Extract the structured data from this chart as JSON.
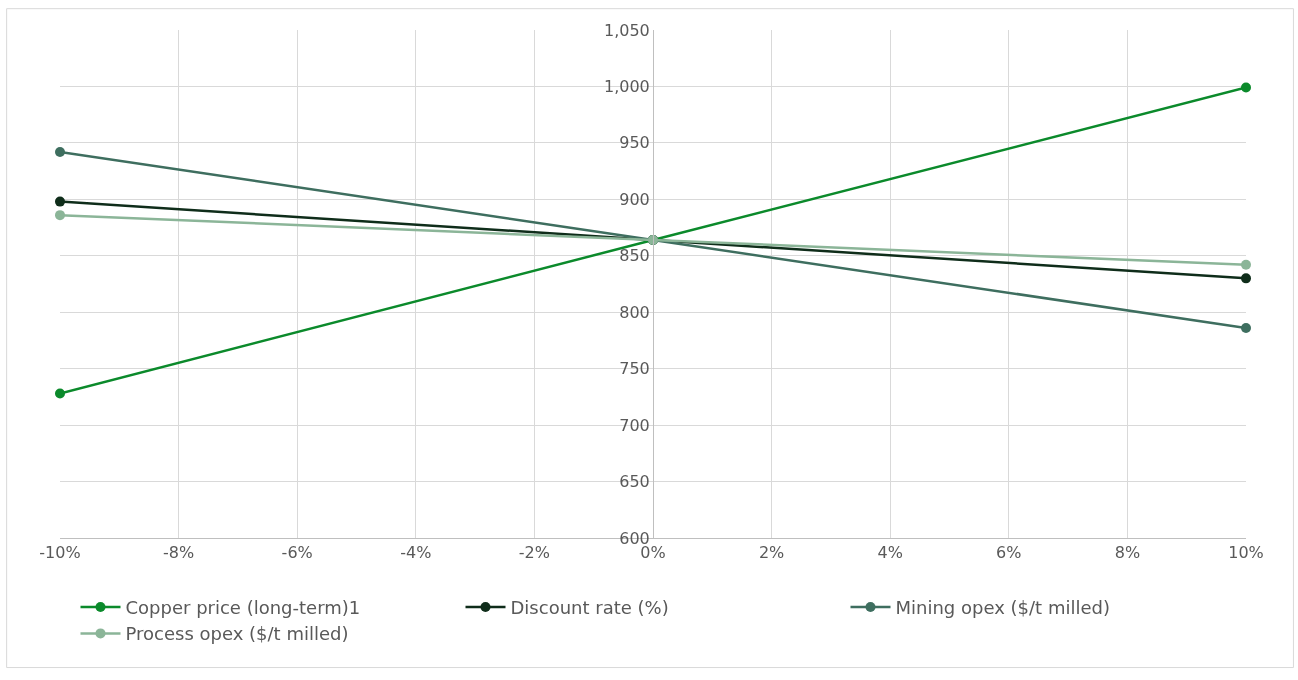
{
  "chart_data": {
    "type": "line",
    "x": [
      -10,
      0,
      10
    ],
    "series": [
      {
        "name": "Copper price (long-term)1",
        "color": "#0b8a2b",
        "values": [
          728,
          864,
          999
        ]
      },
      {
        "name": "Discount rate (%)",
        "color": "#0f2d1a",
        "values": [
          898,
          864,
          830
        ]
      },
      {
        "name": "Mining opex ($/t milled)",
        "color": "#3e6e5f",
        "values": [
          942,
          864,
          786
        ]
      },
      {
        "name": "Process opex ($/t milled)",
        "color": "#8bb598",
        "values": [
          886,
          864,
          842
        ]
      }
    ],
    "xlim": [
      -10,
      10
    ],
    "xticks": [
      {
        "value": -10,
        "label": "-10%"
      },
      {
        "value": -8,
        "label": "-8%"
      },
      {
        "value": -6,
        "label": "-6%"
      },
      {
        "value": -4,
        "label": "-4%"
      },
      {
        "value": -2,
        "label": "-2%"
      },
      {
        "value": 0,
        "label": "0%"
      },
      {
        "value": 2,
        "label": "2%"
      },
      {
        "value": 4,
        "label": "4%"
      },
      {
        "value": 6,
        "label": "6%"
      },
      {
        "value": 8,
        "label": "8%"
      },
      {
        "value": 10,
        "label": "10%"
      }
    ],
    "ylim": [
      600,
      1050
    ],
    "yticks": [
      600,
      650,
      700,
      750,
      800,
      850,
      900,
      950,
      {
        "value": 1000,
        "label": "1,000"
      },
      {
        "value": 1050,
        "label": "1,050"
      }
    ],
    "grid": true,
    "legend": "bottom",
    "marker": "circle",
    "line_style": "solid"
  }
}
